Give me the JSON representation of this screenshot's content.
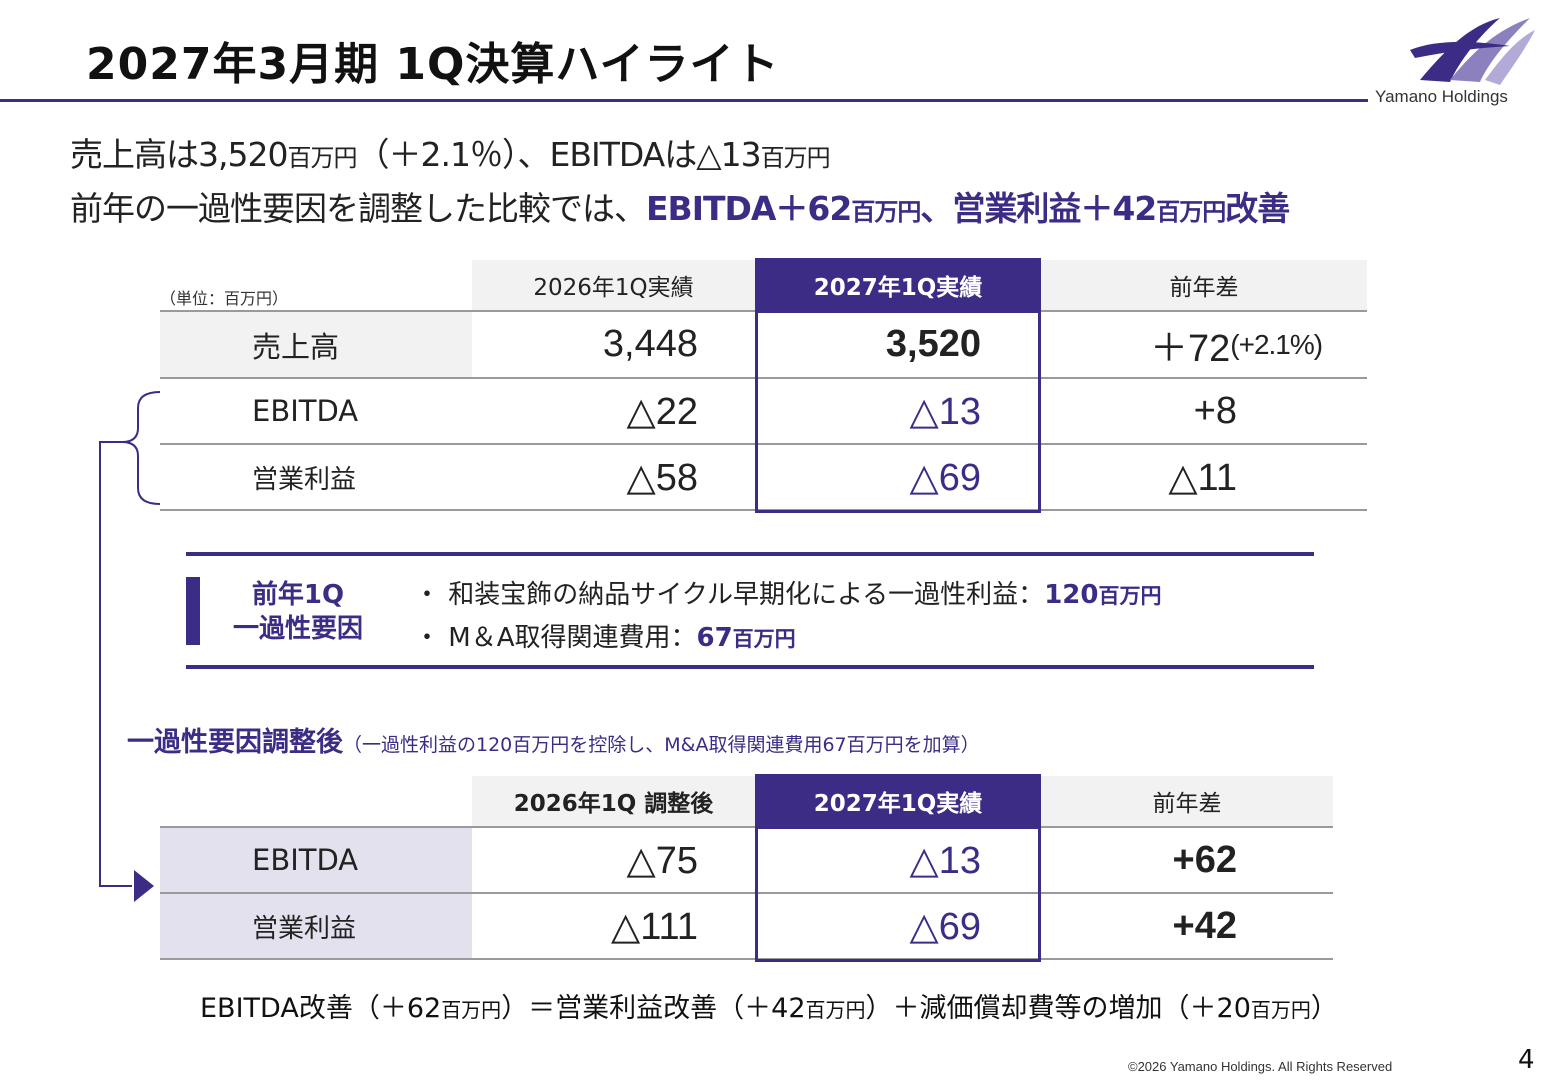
{
  "header": {
    "title": "2027年3月期 1Q決算ハイライト",
    "logo_text": "Yamano Holdings"
  },
  "summary": {
    "line1": {
      "part1": "売上高は3,520",
      "unit1": "百万円",
      "part2": "（＋2.1％）、EBITDAは△13",
      "unit2": "百万円"
    },
    "line2": {
      "lead": "前年の一過性要因を調整した比較では、",
      "hl1": "EBITDA＋62",
      "unit1": "百万円",
      "hl2": "、営業利益＋42",
      "unit2": "百万円",
      "hl3": "改善"
    }
  },
  "table1": {
    "unit_note": "（単位：百万円）",
    "headers": [
      "2026年1Q実績",
      "2027年1Q実績",
      "前年差"
    ],
    "rows": [
      {
        "label": "売上高",
        "prev": "3,448",
        "curr": "3,520",
        "diff": "＋72",
        "diff_pct": "(+2.1%)"
      },
      {
        "label": "EBITDA",
        "prev": "△22",
        "curr": "△13",
        "diff": "+8"
      },
      {
        "label": "営業利益",
        "prev": "△58",
        "curr": "△69",
        "diff": "△11"
      }
    ]
  },
  "one_time": {
    "label_line1": "前年1Q",
    "label_line2": "一過性要因",
    "bullets": [
      {
        "text": "・ 和装宝飾の納品サイクル早期化による一過性利益：",
        "value": "120",
        "unit": "百万円"
      },
      {
        "text": "・ M＆A取得関連費用：",
        "value": "67",
        "unit": "百万円"
      }
    ]
  },
  "adjusted": {
    "heading": "一過性要因調整後",
    "note": "（一過性利益の120百万円を控除し、M&A取得関連費用67百万円を加算）"
  },
  "table2": {
    "headers": [
      "2026年1Q 調整後",
      "2027年1Q実績",
      "前年差"
    ],
    "rows": [
      {
        "label": "EBITDA",
        "prev": "△75",
        "curr": "△13",
        "diff": "+62"
      },
      {
        "label": "営業利益",
        "prev": "△111",
        "curr": "△69",
        "diff": "+42"
      }
    ]
  },
  "formula": {
    "p1": "EBITDA改善（＋62",
    "u1": "百万円",
    "p2": "）＝営業利益改善（＋42",
    "u2": "百万円",
    "p3": "）＋減価償却費等の増加（＋20",
    "u3": "百万円",
    "p4": "）"
  },
  "footer": {
    "copyright": "©2026 Yamano Holdings. All Rights Reserved",
    "page_number": "4"
  },
  "colors": {
    "accent": "#3d2c85",
    "header_grey": "#f2f2f2",
    "lavender": "#e3e1ee"
  }
}
